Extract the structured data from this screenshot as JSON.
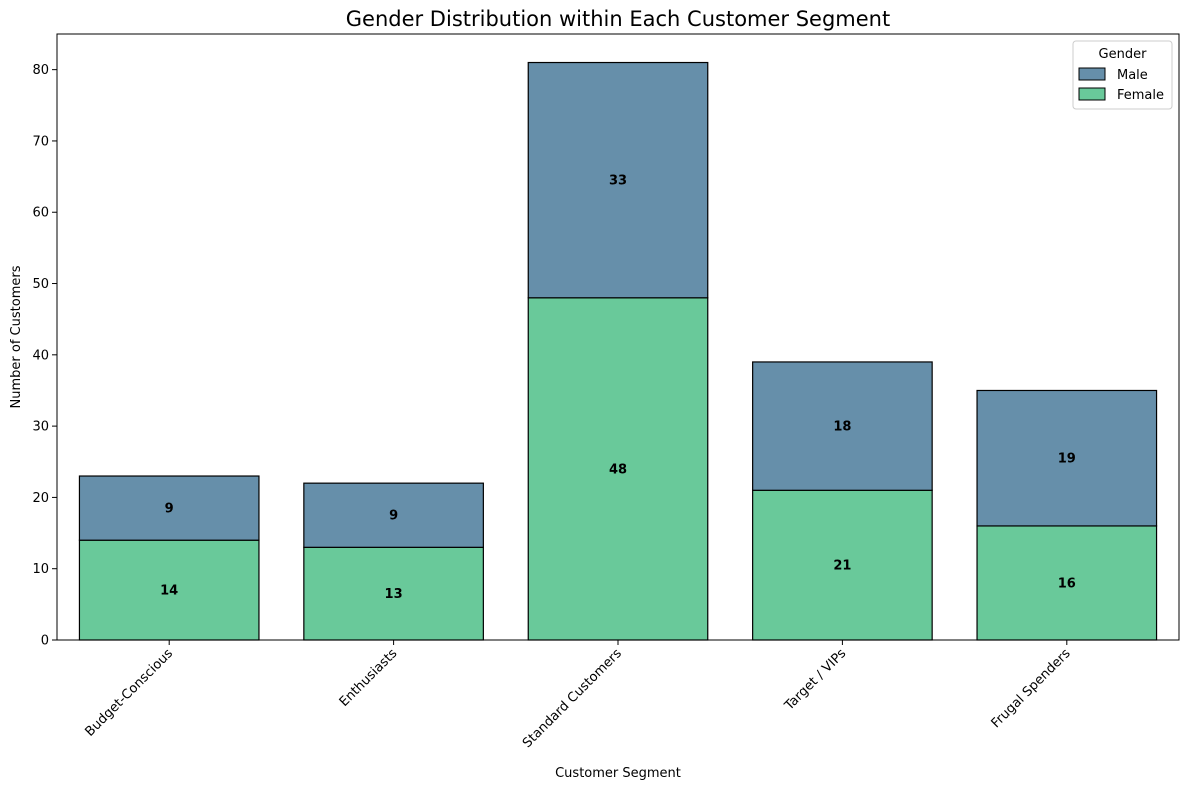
{
  "chart_data": {
    "type": "bar",
    "stacked": true,
    "title": "Gender Distribution within Each Customer Segment",
    "xlabel": "Customer Segment",
    "ylabel": "Number of Customers",
    "categories": [
      "Budget-Conscious",
      "Enthusiasts",
      "Standard Customers",
      "Target / VIPs",
      "Frugal Spenders"
    ],
    "series": [
      {
        "name": "Female",
        "values": [
          14,
          13,
          48,
          21,
          16
        ],
        "color": "#69c99a"
      },
      {
        "name": "Male",
        "values": [
          9,
          9,
          33,
          18,
          19
        ],
        "color": "#668faa"
      }
    ],
    "ylim": [
      0,
      85
    ],
    "yticks": [
      0,
      10,
      20,
      30,
      40,
      50,
      60,
      70,
      80
    ],
    "grid": false,
    "legend": {
      "title": "Gender",
      "placement": "top-right",
      "entries": [
        "Male",
        "Female"
      ]
    }
  }
}
